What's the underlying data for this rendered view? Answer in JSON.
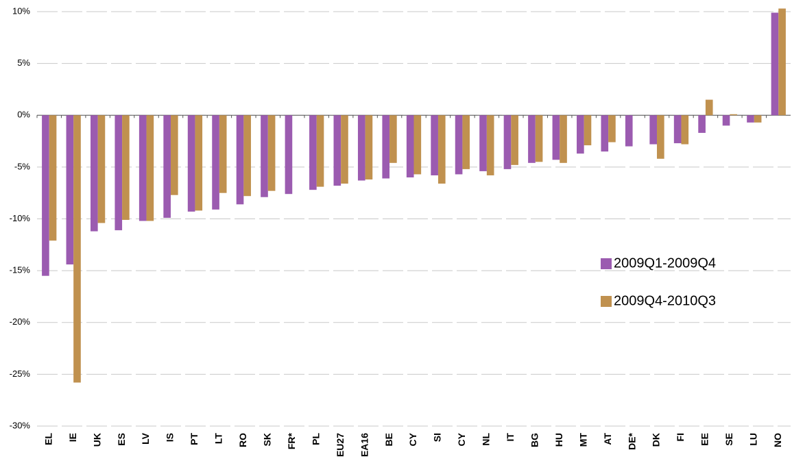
{
  "chart_data": {
    "type": "bar",
    "categories": [
      "EL",
      "IE",
      "UK",
      "ES",
      "LV",
      "IS",
      "PT",
      "LT",
      "RO",
      "SK",
      "FR*",
      "PL",
      "EU27",
      "EA16",
      "BE",
      "CY",
      "SI",
      "CY",
      "NL",
      "IT",
      "BG",
      "HU",
      "MT",
      "AT",
      "DE*",
      "DK",
      "FI",
      "EE",
      "SE",
      "LU",
      "NO"
    ],
    "series": [
      {
        "name": "2009Q1-2009Q4",
        "color": "#9b5bb0",
        "values": [
          -15.5,
          -14.4,
          -11.2,
          -11.1,
          -10.2,
          -9.9,
          -9.3,
          -9.1,
          -8.6,
          -7.9,
          -7.6,
          -7.2,
          -6.8,
          -6.3,
          -6.1,
          -6.0,
          -5.8,
          -5.7,
          -5.4,
          -5.2,
          -4.6,
          -4.3,
          -3.7,
          -3.5,
          -3.0,
          -2.8,
          -2.7,
          -1.7,
          -1.0,
          -0.7,
          9.9
        ]
      },
      {
        "name": "2009Q4-2010Q3",
        "color": "#c0914f",
        "values": [
          -12.1,
          -25.8,
          -10.4,
          -10.1,
          -10.2,
          -7.7,
          -9.2,
          -7.5,
          -7.8,
          -7.3,
          null,
          -6.9,
          -6.6,
          -6.2,
          -4.6,
          -5.7,
          -6.6,
          -5.2,
          -5.8,
          -4.8,
          -4.5,
          -4.6,
          -2.9,
          -2.6,
          null,
          -4.2,
          -2.8,
          1.5,
          0.1,
          -0.7,
          10.3
        ]
      }
    ],
    "ylim": [
      -30,
      10
    ],
    "yticks": [
      {
        "value": -30,
        "label": "-30%"
      },
      {
        "value": -25,
        "label": "-25%"
      },
      {
        "value": -20,
        "label": "-20%"
      },
      {
        "value": -15,
        "label": "-15%"
      },
      {
        "value": -10,
        "label": "-10%"
      },
      {
        "value": -5,
        "label": "-5%"
      },
      {
        "value": 0,
        "label": "0%"
      },
      {
        "value": 5,
        "label": "5%"
      },
      {
        "value": 10,
        "label": "10%"
      }
    ],
    "grid": true,
    "legend": "right"
  }
}
